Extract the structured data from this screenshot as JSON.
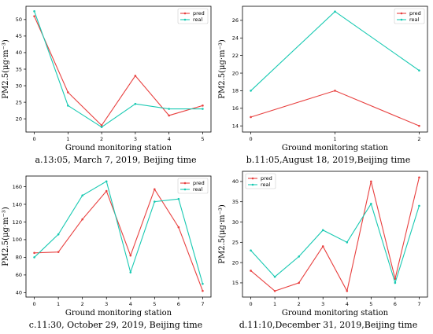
{
  "colors": {
    "pred": "#e8403f",
    "real": "#18c9b2"
  },
  "captions": [
    "a.13:05, March 7, 2019, Beijing time",
    "b.11:05,August 18, 2019,Beijing time",
    "c.11:30, October 29, 2019, Beijing time",
    "d.11:10,December 31, 2019,Beijing time"
  ],
  "chart_data": [
    {
      "type": "line",
      "xlabel": "Ground monitoring station",
      "ylabel": "PM2.5(μg·m⁻³)",
      "x": [
        0,
        1,
        2,
        3,
        4,
        5
      ],
      "xticks": [
        0,
        1,
        2,
        3,
        4,
        5
      ],
      "yticks": [
        20,
        25,
        30,
        35,
        40,
        45,
        50
      ],
      "ylim": [
        16,
        54
      ],
      "series": [
        {
          "name": "pred",
          "values": [
            51,
            28,
            18,
            33,
            21,
            24
          ]
        },
        {
          "name": "real",
          "values": [
            52.5,
            24,
            17.5,
            24.5,
            23,
            23
          ]
        }
      ],
      "legend": "top-right",
      "grid": false
    },
    {
      "type": "line",
      "xlabel": "Ground monitoring station",
      "ylabel": "PM2.5(μg·m⁻³)",
      "x": [
        0,
        1,
        2
      ],
      "xticks": [
        0,
        1,
        2
      ],
      "yticks": [
        14,
        16,
        18,
        20,
        22,
        24,
        26
      ],
      "ylim": [
        13.3,
        27.6
      ],
      "series": [
        {
          "name": "pred",
          "values": [
            15,
            18,
            14
          ]
        },
        {
          "name": "real",
          "values": [
            18,
            27,
            20.3
          ]
        }
      ],
      "legend": "top-right",
      "grid": false
    },
    {
      "type": "line",
      "xlabel": "Ground monitoring station",
      "ylabel": "PM2.5(μg·m⁻³)",
      "x": [
        0,
        1,
        2,
        3,
        4,
        5,
        6,
        7
      ],
      "xticks": [
        0,
        1,
        2,
        3,
        4,
        5,
        6,
        7
      ],
      "yticks": [
        40,
        60,
        80,
        100,
        120,
        140,
        160
      ],
      "ylim": [
        35,
        172
      ],
      "series": [
        {
          "name": "pred",
          "values": [
            85,
            86,
            123,
            155,
            82,
            157,
            114,
            42
          ]
        },
        {
          "name": "real",
          "values": [
            80,
            106,
            150,
            166,
            63,
            143,
            146,
            50
          ]
        }
      ],
      "legend": "top-right",
      "grid": false
    },
    {
      "type": "line",
      "xlabel": "Ground monitoring station",
      "ylabel": "PM2.5(μg·m⁻³)",
      "x": [
        0,
        1,
        2,
        3,
        4,
        5,
        6,
        7
      ],
      "xticks": [
        0,
        1,
        2,
        3,
        4,
        5,
        6,
        7
      ],
      "yticks": [
        15,
        20,
        25,
        30,
        35,
        40
      ],
      "ylim": [
        11.5,
        42.5
      ],
      "series": [
        {
          "name": "pred",
          "values": [
            18,
            13,
            15,
            24,
            13,
            40,
            16,
            41
          ]
        },
        {
          "name": "real",
          "values": [
            23,
            16.5,
            21.5,
            28,
            25,
            34.5,
            15,
            34
          ]
        }
      ],
      "legend": "top-left",
      "grid": false
    }
  ]
}
